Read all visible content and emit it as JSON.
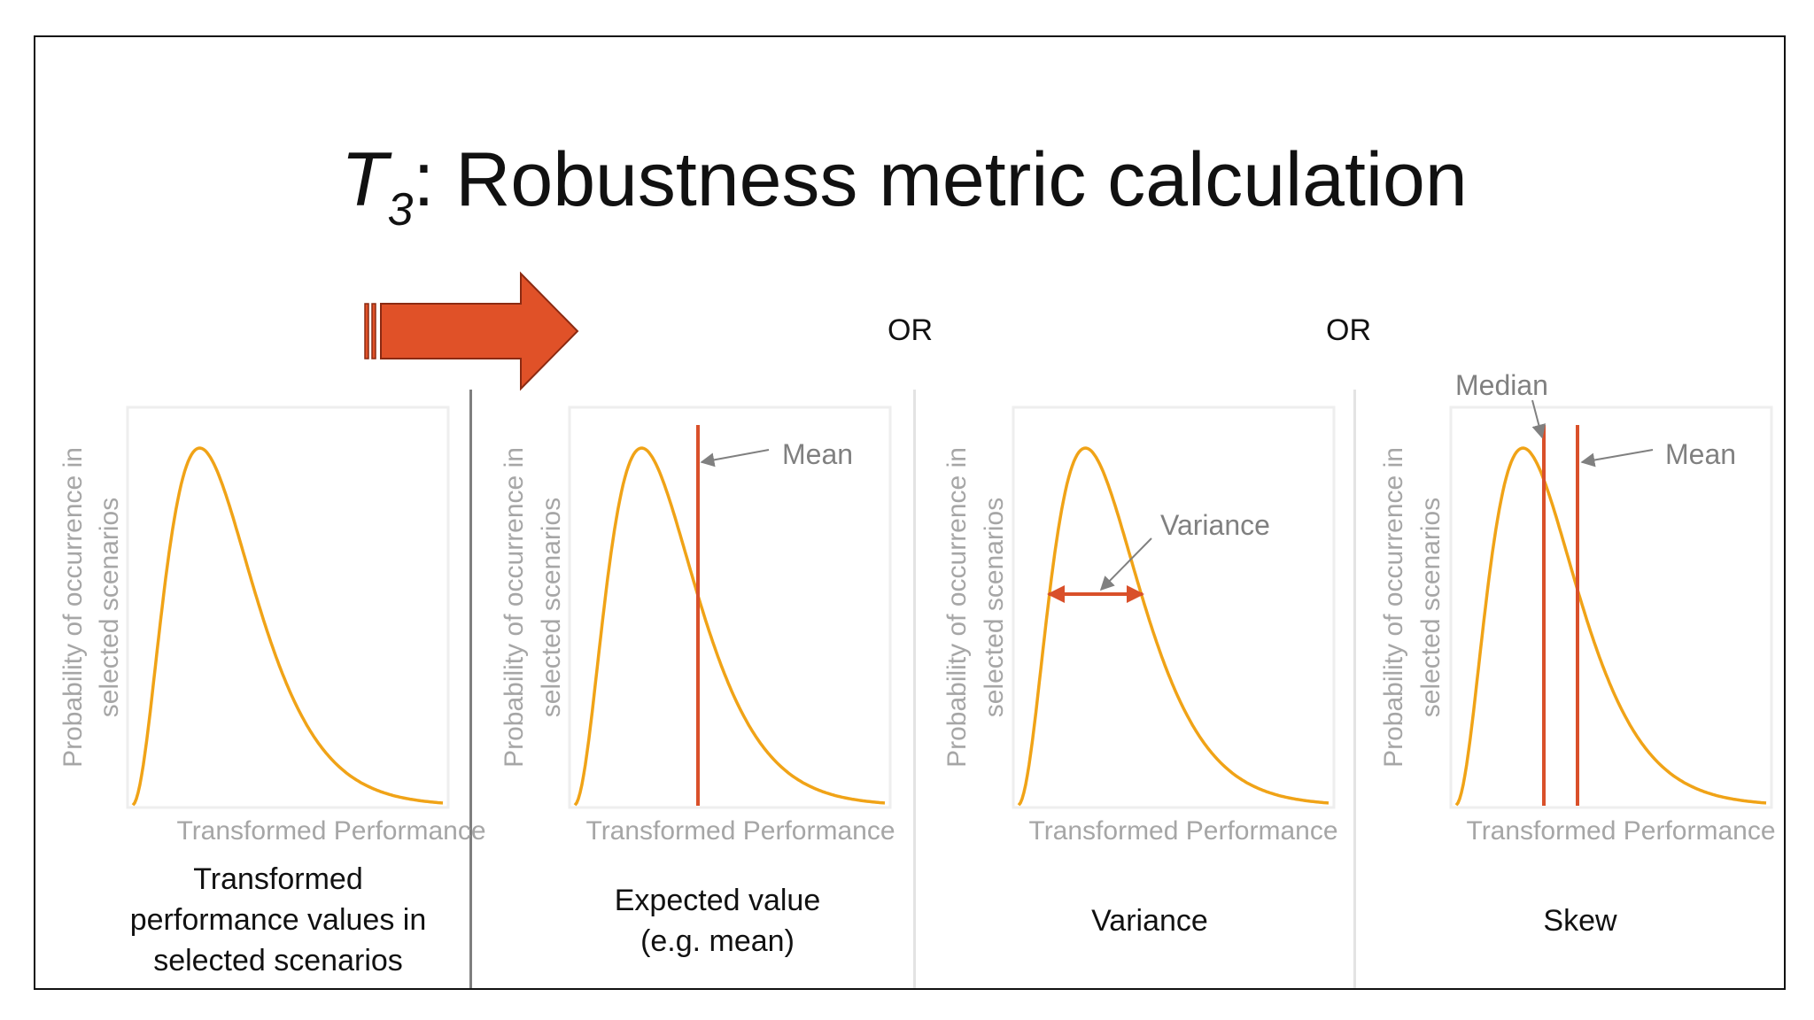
{
  "title": {
    "main": "T",
    "subscript": "3",
    "rest": ": Robustness metric calculation"
  },
  "or_labels": [
    "OR",
    "OR"
  ],
  "axis": {
    "ylabel_line1": "Probability of occurrence in",
    "ylabel_line2": "selected scenarios",
    "xlabel": "Transformed Performance"
  },
  "panels": [
    {
      "caption_lines": [
        "Transformed",
        "performance values in",
        "selected scenarios"
      ],
      "annotations": []
    },
    {
      "caption_lines": [
        "Expected value",
        "(e.g. mean)"
      ],
      "annotations": [
        "Mean"
      ]
    },
    {
      "caption_lines": [
        "Variance"
      ],
      "annotations": [
        "Variance"
      ]
    },
    {
      "caption_lines": [
        "Skew"
      ],
      "annotations": [
        "Median",
        "Mean"
      ]
    }
  ],
  "colors": {
    "curve": "#f0a317",
    "marker": "#d9502a",
    "arrow": "#e05128",
    "annotation": "#808080",
    "axis_text": "#a6a6a6"
  }
}
